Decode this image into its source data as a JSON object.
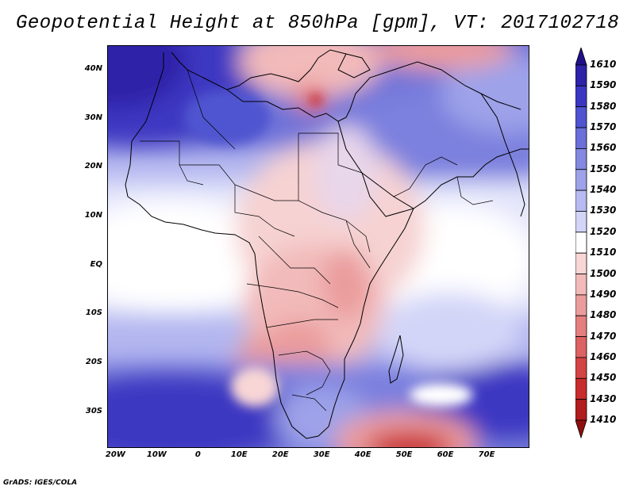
{
  "title": "Geopotential Height at 850hPa [gpm], VT: 2017102718",
  "footer": "GrADS: IGES/COLA",
  "map": {
    "type": "heatmap",
    "variable": "Geopotential Height",
    "level": "850hPa",
    "units": "gpm",
    "valid_time": "2017102718",
    "lon_range": [
      -22,
      80
    ],
    "lat_range": [
      -37,
      45
    ],
    "x_ticks": [
      "20W",
      "10W",
      "0",
      "10E",
      "20E",
      "30E",
      "40E",
      "50E",
      "60E",
      "70E"
    ],
    "x_tick_values": [
      -20,
      -10,
      0,
      10,
      20,
      30,
      40,
      50,
      60,
      70
    ],
    "y_ticks": [
      "40N",
      "30N",
      "20N",
      "10N",
      "EQ",
      "10S",
      "20S",
      "30S"
    ],
    "y_tick_values": [
      40,
      30,
      20,
      10,
      0,
      -10,
      -20,
      -30
    ]
  },
  "colorbar": {
    "labels": [
      "1610",
      "1590",
      "1580",
      "1570",
      "1560",
      "1550",
      "1540",
      "1530",
      "1520",
      "1510",
      "1500",
      "1490",
      "1480",
      "1470",
      "1460",
      "1450",
      "1430",
      "1410"
    ],
    "colors": [
      "#1f108a",
      "#2d22a8",
      "#3c37c2",
      "#5054d0",
      "#6a6fd9",
      "#8488e1",
      "#9da2e9",
      "#b8bbf1",
      "#d3d5f8",
      "#ffffff",
      "#f8d6d6",
      "#f2baba",
      "#eb9c9c",
      "#e47f7f",
      "#dd6262",
      "#d44444",
      "#c92c2c",
      "#b11c1c",
      "#8f0f0f"
    ]
  }
}
